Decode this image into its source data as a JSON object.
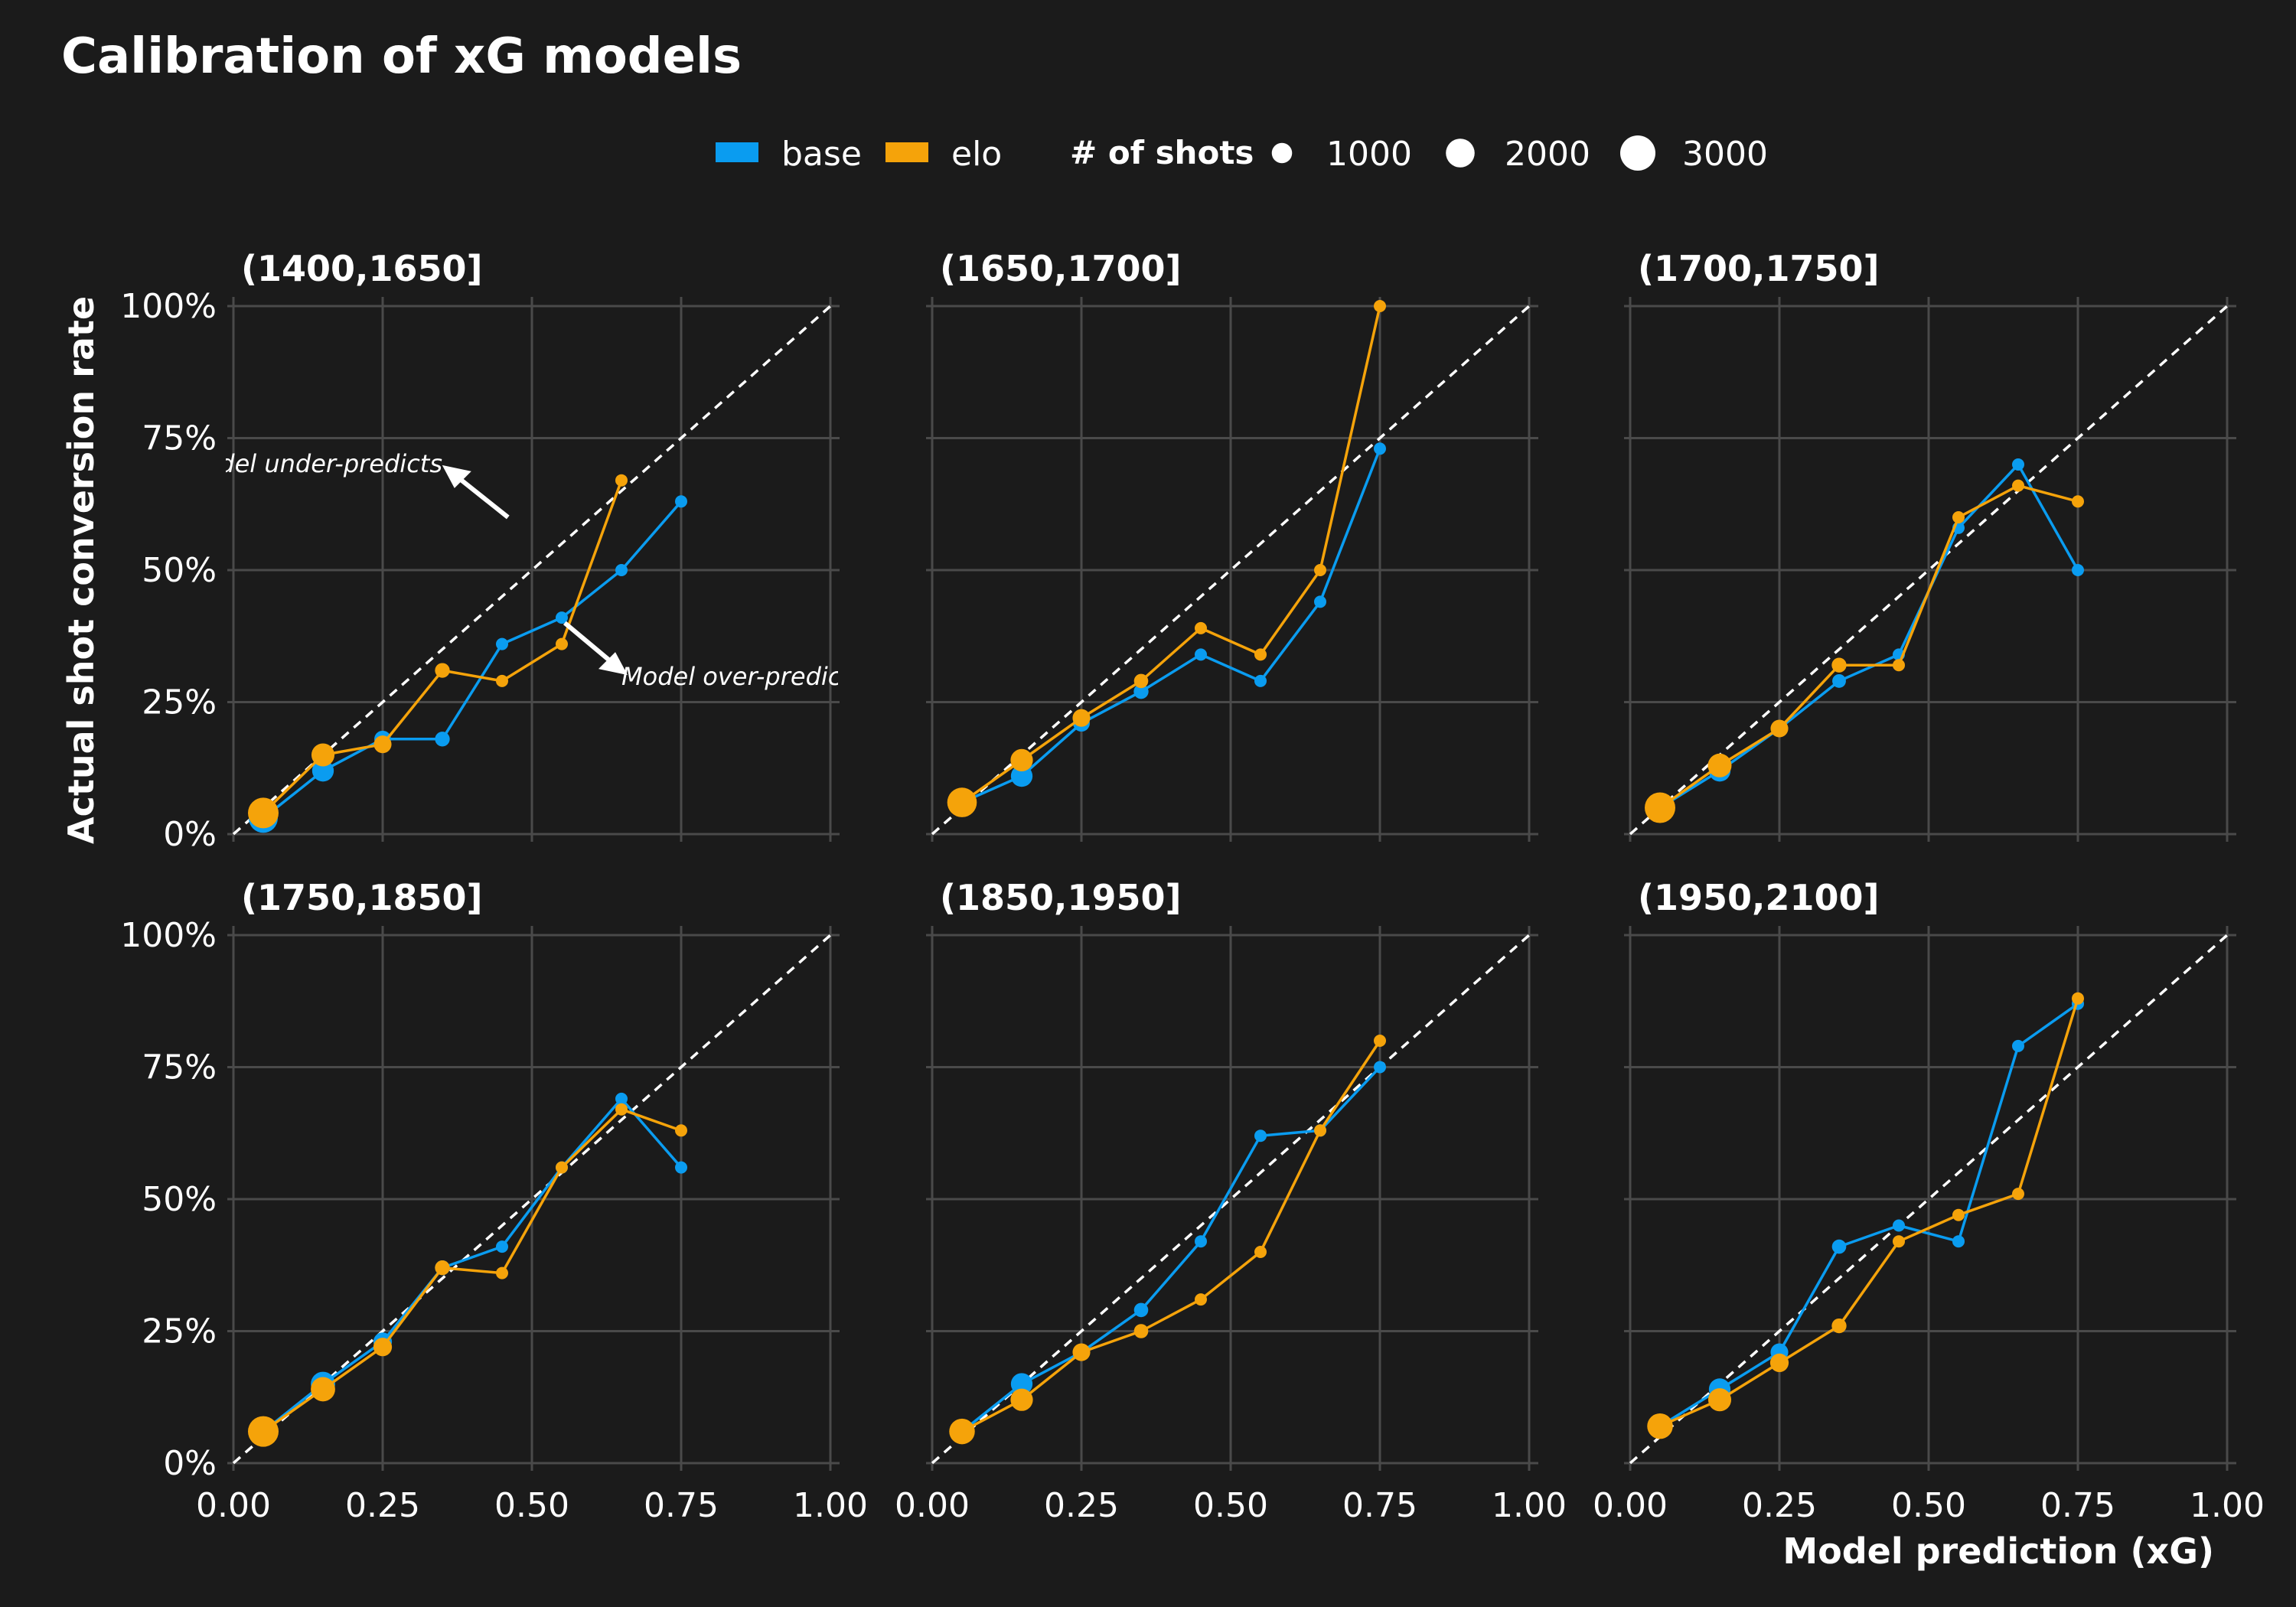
{
  "chart_data": {
    "type": "scatter",
    "title": "Calibration of xG models",
    "xlabel": "Model prediction (xG)",
    "ylabel": "Actual shot conversion rate",
    "xlim": [
      0,
      1
    ],
    "ylim": [
      0,
      1
    ],
    "x_ticks": [
      "0.00",
      "0.25",
      "0.50",
      "0.75",
      "1.00"
    ],
    "y_ticks": [
      "0%",
      "25%",
      "50%",
      "75%",
      "100%"
    ],
    "grid": true,
    "legend_placement": "top",
    "colors": {
      "base": "#0a9cf0",
      "elo": "#f5a30a",
      "background": "#1b1b1b"
    },
    "legend": {
      "series": [
        {
          "name": "base",
          "color": "#0a9cf0"
        },
        {
          "name": "elo",
          "color": "#f5a30a"
        }
      ],
      "size_title": "# of shots",
      "size_entries": [
        {
          "label": "1000",
          "value": 1000
        },
        {
          "label": "2000",
          "value": 2000
        },
        {
          "label": "3000",
          "value": 3000
        }
      ]
    },
    "annotations": [
      {
        "text": "Model under-predicts",
        "visible_text": "lel under-predicts",
        "x": 0.35,
        "y": 0.7,
        "panel": 0
      },
      {
        "text": "Model over-predicts",
        "visible_text": "Model over-predi",
        "x": 0.65,
        "y": 0.3,
        "panel": 0
      }
    ],
    "panels": [
      {
        "title": "(1400,1650]",
        "series": [
          {
            "name": "base",
            "x": [
              0.05,
              0.15,
              0.25,
              0.35,
              0.45,
              0.55,
              0.65,
              0.75
            ],
            "y": [
              0.03,
              0.12,
              0.18,
              0.18,
              0.36,
              0.41,
              0.5,
              0.63
            ],
            "n": [
              2700,
              1500,
              900,
              700,
              450,
              280,
              150,
              60
            ]
          },
          {
            "name": "elo",
            "x": [
              0.05,
              0.15,
              0.25,
              0.35,
              0.45,
              0.55,
              0.65
            ],
            "y": [
              0.04,
              0.15,
              0.17,
              0.31,
              0.29,
              0.36,
              0.67
            ],
            "n": [
              3000,
              1700,
              1000,
              700,
              450,
              280,
              100
            ]
          }
        ]
      },
      {
        "title": "(1650,1700]",
        "series": [
          {
            "name": "base",
            "x": [
              0.05,
              0.15,
              0.25,
              0.35,
              0.45,
              0.55,
              0.65,
              0.75
            ],
            "y": [
              0.06,
              0.11,
              0.21,
              0.27,
              0.34,
              0.29,
              0.44,
              0.73
            ],
            "n": [
              2500,
              1500,
              900,
              700,
              450,
              300,
              180,
              60
            ]
          },
          {
            "name": "elo",
            "x": [
              0.05,
              0.15,
              0.25,
              0.35,
              0.45,
              0.55,
              0.65,
              0.75
            ],
            "y": [
              0.06,
              0.14,
              0.22,
              0.29,
              0.39,
              0.34,
              0.5,
              1.0
            ],
            "n": [
              2800,
              1600,
              1000,
              650,
              400,
              250,
              120,
              30
            ]
          }
        ]
      },
      {
        "title": "(1700,1750]",
        "series": [
          {
            "name": "base",
            "x": [
              0.05,
              0.15,
              0.25,
              0.35,
              0.45,
              0.55,
              0.65,
              0.75
            ],
            "y": [
              0.05,
              0.12,
              0.2,
              0.29,
              0.34,
              0.58,
              0.7,
              0.5
            ],
            "n": [
              2700,
              1500,
              900,
              600,
              400,
              250,
              120,
              40
            ]
          },
          {
            "name": "elo",
            "x": [
              0.05,
              0.15,
              0.25,
              0.35,
              0.45,
              0.55,
              0.65,
              0.75
            ],
            "y": [
              0.05,
              0.13,
              0.2,
              0.32,
              0.32,
              0.6,
              0.66,
              0.63
            ],
            "n": [
              3000,
              1800,
              1000,
              700,
              450,
              250,
              100,
              30
            ]
          }
        ]
      },
      {
        "title": "(1750,1850]",
        "series": [
          {
            "name": "base",
            "x": [
              0.05,
              0.15,
              0.25,
              0.35,
              0.45,
              0.55,
              0.65,
              0.75
            ],
            "y": [
              0.06,
              0.15,
              0.23,
              0.37,
              0.41,
              0.56,
              0.69,
              0.56
            ],
            "n": [
              2900,
              1900,
              1100,
              700,
              450,
              250,
              130,
              50
            ]
          },
          {
            "name": "elo",
            "x": [
              0.05,
              0.15,
              0.25,
              0.35,
              0.45,
              0.55,
              0.65,
              0.75
            ],
            "y": [
              0.06,
              0.14,
              0.22,
              0.37,
              0.36,
              0.56,
              0.67,
              0.63
            ],
            "n": [
              3000,
              1900,
              1100,
              700,
              450,
              250,
              100,
              30
            ]
          }
        ]
      },
      {
        "title": "(1850,1950]",
        "series": [
          {
            "name": "base",
            "x": [
              0.05,
              0.15,
              0.25,
              0.35,
              0.45,
              0.55,
              0.65,
              0.75
            ],
            "y": [
              0.06,
              0.15,
              0.21,
              0.29,
              0.42,
              0.62,
              0.63,
              0.75
            ],
            "n": [
              1900,
              1500,
              900,
              650,
              400,
              250,
              130,
              50
            ]
          },
          {
            "name": "elo",
            "x": [
              0.05,
              0.15,
              0.25,
              0.35,
              0.45,
              0.55,
              0.65,
              0.75
            ],
            "y": [
              0.06,
              0.12,
              0.21,
              0.25,
              0.31,
              0.4,
              0.63,
              0.8
            ],
            "n": [
              2100,
              1600,
              1000,
              650,
              400,
              250,
              100,
              30
            ]
          }
        ]
      },
      {
        "title": "(1950,2100]",
        "series": [
          {
            "name": "base",
            "x": [
              0.05,
              0.15,
              0.25,
              0.35,
              0.45,
              0.55,
              0.65,
              0.75
            ],
            "y": [
              0.07,
              0.14,
              0.21,
              0.41,
              0.45,
              0.42,
              0.79,
              0.87
            ],
            "n": [
              2000,
              1500,
              1000,
              650,
              400,
              250,
              120,
              40
            ]
          },
          {
            "name": "elo",
            "x": [
              0.05,
              0.15,
              0.25,
              0.35,
              0.45,
              0.55,
              0.65,
              0.75
            ],
            "y": [
              0.07,
              0.12,
              0.19,
              0.26,
              0.42,
              0.47,
              0.51,
              0.88
            ],
            "n": [
              2100,
              1700,
              1100,
              700,
              450,
              250,
              120,
              30
            ]
          }
        ]
      }
    ]
  }
}
